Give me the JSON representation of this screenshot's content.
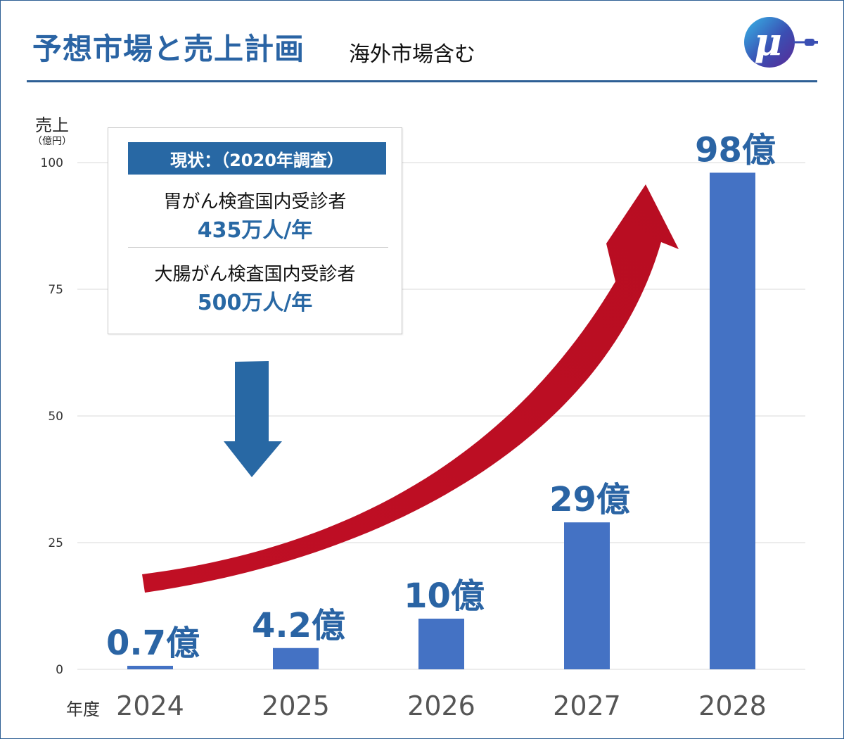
{
  "header": {
    "title": "予想市場と売上計画",
    "subtitle": "海外市場含む"
  },
  "logo": {
    "glyph": "μ"
  },
  "colors": {
    "brand_blue": "#2a64a4",
    "bar_blue": "#4472c4",
    "arrow_red": "#c00f24",
    "down_arrow_blue": "#2868a4",
    "grid": "#d9d9d9"
  },
  "info_box": {
    "header": "現状：（2020年調査）",
    "items": [
      {
        "label": "胃がん検査国内受診者",
        "value": "435万人/年"
      },
      {
        "label": "大腸がん検査国内受診者",
        "value": "500万人/年"
      }
    ]
  },
  "axis": {
    "y_title": "売上",
    "y_unit": "（億円）",
    "x_title": "年度"
  },
  "chart_data": {
    "type": "bar",
    "title": "予想市場と売上計画",
    "ylabel": "売上（億円）",
    "xlabel": "年度",
    "ylim": [
      0,
      100
    ],
    "yticks": [
      0,
      25,
      50,
      75,
      100
    ],
    "grid": true,
    "categories": [
      "2024",
      "2025",
      "2026",
      "2027",
      "2028"
    ],
    "values": [
      0.7,
      4.2,
      10,
      29,
      98
    ],
    "data_labels": [
      "0.7億",
      "4.2億",
      "10億",
      "29億",
      "98億"
    ],
    "annotations": [
      "growth-arrow",
      "down-arrow"
    ]
  }
}
